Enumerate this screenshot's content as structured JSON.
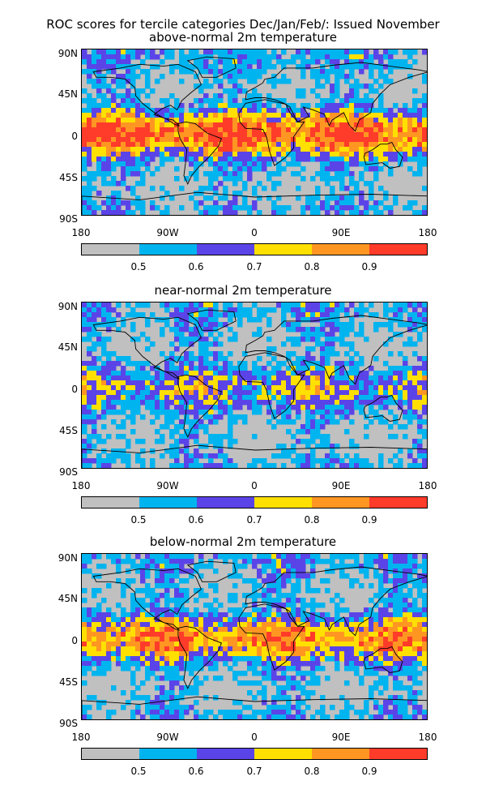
{
  "figure": {
    "title": "ROC scores for tercile categories Dec/Jan/Feb/: Issued November"
  },
  "axes": {
    "lat_labels": [
      "90N",
      "45N",
      "0",
      "45S",
      "90S"
    ],
    "lon_labels": [
      "180",
      "90W",
      "0",
      "90E",
      "180"
    ]
  },
  "colorbar": {
    "colors": [
      "#c0c0c0",
      "#00b4ef",
      "#5a44e8",
      "#ffe000",
      "#ff9622",
      "#ff3b2a"
    ],
    "tick_labels": [
      "0.5",
      "0.6",
      "0.7",
      "0.8",
      "0.9"
    ]
  },
  "panels": [
    {
      "subtitle": "above-normal 2m temperature"
    },
    {
      "subtitle": "near-normal 2m temperature"
    },
    {
      "subtitle": "below-normal 2m temperature"
    }
  ]
}
